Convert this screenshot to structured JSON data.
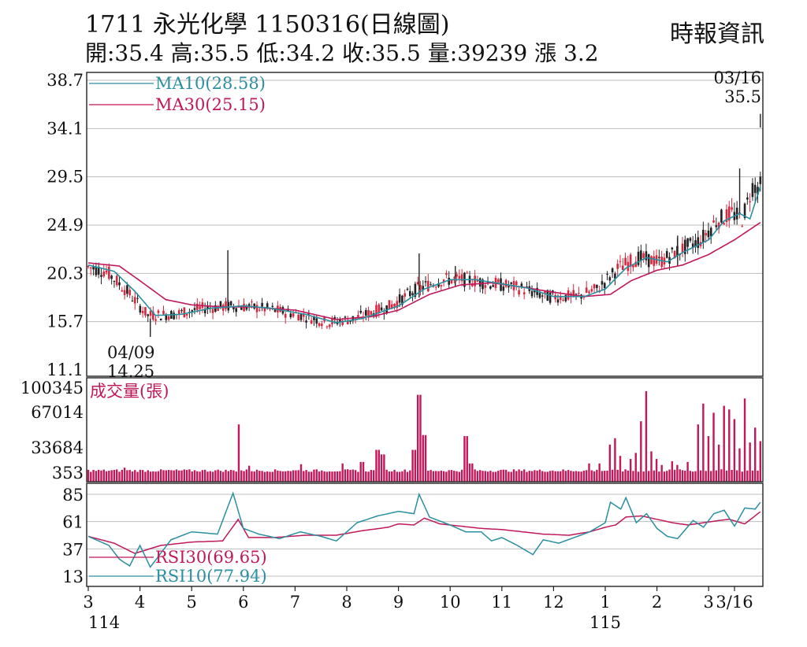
{
  "header": {
    "title": "1711  永光化學 1150316(日線圖)",
    "ohlc": "開:35.4 高:35.5 低:34.2 收:35.5 量:39239 漲 3.2",
    "source": "時報資訊"
  },
  "colors": {
    "up": "#d8273f",
    "down": "#222222",
    "ma10": "#2a8fa0",
    "ma30": "#c0185a",
    "volume": "#c0185a",
    "rsi10": "#2a8fa0",
    "rsi30": "#c0185a",
    "grid": "#bdbdbd"
  },
  "chart_data": [
    {
      "type": "line",
      "subtype": "candlestick",
      "y_ticks": [
        38.7,
        34.1,
        29.5,
        24.9,
        20.3,
        15.7,
        11.1
      ],
      "ylim": [
        11.1,
        38.7
      ],
      "x_tick_labels": [
        "3",
        "4",
        "5",
        "6",
        "7",
        "8",
        "9",
        "10",
        "11",
        "12",
        "1",
        "2",
        "3",
        "3/16"
      ],
      "x_tick_month_index": [
        0,
        1,
        2,
        3,
        4,
        5,
        6,
        7,
        8,
        9,
        10,
        11,
        12,
        12.5
      ],
      "x_year_labels": [
        "114",
        "115"
      ],
      "grid": true,
      "series": [
        {
          "name": "MA10(28.58)",
          "anchors": [
            [
              0,
              21.1
            ],
            [
              0.5,
              20.5
            ],
            [
              0.9,
              18.6
            ],
            [
              1.3,
              16.3
            ],
            [
              1.8,
              16.4
            ],
            [
              2.4,
              17.0
            ],
            [
              3.0,
              17.2
            ],
            [
              3.5,
              17.0
            ],
            [
              4.2,
              16.4
            ],
            [
              4.8,
              15.6
            ],
            [
              5.3,
              16.0
            ],
            [
              6.0,
              17.2
            ],
            [
              6.5,
              18.8
            ],
            [
              7.0,
              19.7
            ],
            [
              7.5,
              19.7
            ],
            [
              8.0,
              19.3
            ],
            [
              8.5,
              18.9
            ],
            [
              9.0,
              18.1
            ],
            [
              9.6,
              18.1
            ],
            [
              10.0,
              18.8
            ],
            [
              10.4,
              20.8
            ],
            [
              10.8,
              21.8
            ],
            [
              11.2,
              21.4
            ],
            [
              11.5,
              22.3
            ],
            [
              12.0,
              23.5
            ],
            [
              12.3,
              25.3
            ],
            [
              12.6,
              26.0
            ],
            [
              12.8,
              25.5
            ],
            [
              13.0,
              28.58
            ]
          ]
        },
        {
          "name": "MA30(25.15)",
          "anchors": [
            [
              0,
              21.3
            ],
            [
              0.6,
              21.0
            ],
            [
              1.0,
              19.6
            ],
            [
              1.5,
              17.8
            ],
            [
              2.0,
              17.3
            ],
            [
              2.6,
              17.1
            ],
            [
              3.2,
              17.1
            ],
            [
              4.0,
              16.8
            ],
            [
              4.8,
              15.9
            ],
            [
              5.5,
              16.2
            ],
            [
              6.0,
              16.8
            ],
            [
              6.6,
              18.3
            ],
            [
              7.2,
              19.2
            ],
            [
              7.8,
              19.4
            ],
            [
              8.4,
              19.0
            ],
            [
              9.0,
              18.5
            ],
            [
              9.6,
              18.1
            ],
            [
              10.1,
              18.3
            ],
            [
              10.5,
              19.6
            ],
            [
              11.0,
              20.6
            ],
            [
              11.5,
              21.1
            ],
            [
              12.0,
              22.1
            ],
            [
              12.5,
              23.5
            ],
            [
              13.0,
              25.15
            ]
          ]
        }
      ],
      "annotations": [
        {
          "date": "04/09",
          "value": "14.25"
        },
        {
          "date": "03/16",
          "value": "35.5"
        }
      ],
      "last_bar": {
        "open": 35.4,
        "high": 35.5,
        "low": 34.2,
        "close": 35.5
      }
    },
    {
      "type": "bar",
      "title": "成交量(張)",
      "y_ticks": [
        100345,
        67014,
        33684,
        353
      ],
      "ylim": [
        353,
        100345
      ],
      "last_value": 39239,
      "spikes": [
        [
          0.5,
          3500
        ],
        [
          0.7,
          6500
        ],
        [
          2.9,
          55000
        ],
        [
          3.1,
          9000
        ],
        [
          4.1,
          11000
        ],
        [
          4.9,
          12000
        ],
        [
          5.3,
          14000
        ],
        [
          5.6,
          30000
        ],
        [
          5.7,
          24000
        ],
        [
          6.3,
          30000
        ],
        [
          6.4,
          90000
        ],
        [
          6.5,
          45000
        ],
        [
          7.3,
          44000
        ],
        [
          7.4,
          12000
        ],
        [
          9.7,
          12000
        ],
        [
          9.9,
          12000
        ],
        [
          10.1,
          36000
        ],
        [
          10.2,
          42000
        ],
        [
          10.3,
          22000
        ],
        [
          10.5,
          18000
        ],
        [
          10.6,
          26000
        ],
        [
          10.7,
          58000
        ],
        [
          10.8,
          95000
        ],
        [
          10.9,
          28000
        ],
        [
          11.0,
          18000
        ],
        [
          11.1,
          10000
        ],
        [
          11.3,
          15000
        ],
        [
          11.4,
          10000
        ],
        [
          11.6,
          14000
        ],
        [
          11.8,
          55000
        ],
        [
          11.9,
          78000
        ],
        [
          12.0,
          44000
        ],
        [
          12.1,
          66000
        ],
        [
          12.2,
          36000
        ],
        [
          12.3,
          75000
        ],
        [
          12.4,
          70000
        ],
        [
          12.5,
          60000
        ],
        [
          12.6,
          32000
        ],
        [
          12.7,
          85000
        ],
        [
          12.8,
          38000
        ],
        [
          12.9,
          52000
        ],
        [
          13.0,
          39239
        ]
      ]
    },
    {
      "type": "line",
      "y_ticks": [
        85,
        61,
        37,
        13
      ],
      "ylim": [
        13,
        85
      ],
      "series": [
        {
          "name": "RSI30(69.65)",
          "anchors": [
            [
              0,
              48
            ],
            [
              0.5,
              42
            ],
            [
              0.9,
              33
            ],
            [
              1.4,
              40
            ],
            [
              2.0,
              43
            ],
            [
              2.6,
              44
            ],
            [
              2.9,
              63
            ],
            [
              3.1,
              47
            ],
            [
              3.6,
              47
            ],
            [
              4.2,
              49
            ],
            [
              4.8,
              49
            ],
            [
              5.3,
              53
            ],
            [
              5.8,
              56
            ],
            [
              6.0,
              59
            ],
            [
              6.3,
              58
            ],
            [
              6.5,
              64
            ],
            [
              6.8,
              59
            ],
            [
              7.2,
              57
            ],
            [
              7.6,
              55
            ],
            [
              8.0,
              54
            ],
            [
              8.4,
              52
            ],
            [
              8.8,
              50
            ],
            [
              9.3,
              49
            ],
            [
              9.7,
              52
            ],
            [
              10.0,
              56
            ],
            [
              10.2,
              58
            ],
            [
              10.4,
              65
            ],
            [
              10.7,
              66
            ],
            [
              11.0,
              63
            ],
            [
              11.3,
              60
            ],
            [
              11.6,
              58
            ],
            [
              11.9,
              60
            ],
            [
              12.2,
              62
            ],
            [
              12.4,
              63
            ],
            [
              12.7,
              59
            ],
            [
              13.0,
              69.65
            ]
          ]
        },
        {
          "name": "RSI10(77.94)",
          "anchors": [
            [
              0,
              48
            ],
            [
              0.4,
              40
            ],
            [
              0.6,
              28
            ],
            [
              0.8,
              22
            ],
            [
              1.0,
              40
            ],
            [
              1.2,
              21
            ],
            [
              1.6,
              45
            ],
            [
              2.0,
              52
            ],
            [
              2.5,
              50
            ],
            [
              2.8,
              86
            ],
            [
              3.0,
              55
            ],
            [
              3.3,
              50
            ],
            [
              3.7,
              46
            ],
            [
              4.1,
              52
            ],
            [
              4.5,
              48
            ],
            [
              4.8,
              44
            ],
            [
              5.2,
              60
            ],
            [
              5.6,
              66
            ],
            [
              6.0,
              70
            ],
            [
              6.3,
              68
            ],
            [
              6.4,
              85
            ],
            [
              6.6,
              65
            ],
            [
              7.0,
              58
            ],
            [
              7.3,
              52
            ],
            [
              7.6,
              52
            ],
            [
              7.8,
              44
            ],
            [
              8.0,
              47
            ],
            [
              8.3,
              40
            ],
            [
              8.6,
              32
            ],
            [
              8.8,
              45
            ],
            [
              9.1,
              42
            ],
            [
              9.4,
              47
            ],
            [
              9.7,
              52
            ],
            [
              10.0,
              60
            ],
            [
              10.1,
              78
            ],
            [
              10.3,
              72
            ],
            [
              10.4,
              82
            ],
            [
              10.6,
              60
            ],
            [
              10.8,
              68
            ],
            [
              11.0,
              55
            ],
            [
              11.2,
              48
            ],
            [
              11.4,
              46
            ],
            [
              11.7,
              62
            ],
            [
              11.9,
              56
            ],
            [
              12.1,
              68
            ],
            [
              12.3,
              71
            ],
            [
              12.5,
              57
            ],
            [
              12.7,
              73
            ],
            [
              12.9,
              72
            ],
            [
              13.0,
              77.94
            ]
          ]
        }
      ]
    }
  ]
}
